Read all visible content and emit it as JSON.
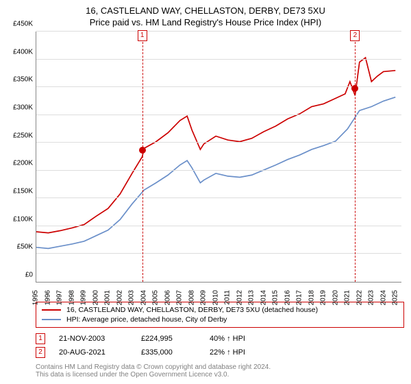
{
  "title": {
    "line1": "16, CASTLELAND WAY, CHELLASTON, DERBY, DE73 5XU",
    "line2": "Price paid vs. HM Land Registry's House Price Index (HPI)"
  },
  "chart": {
    "type": "line",
    "background_color": "#ffffff",
    "grid_color": "#dddddd",
    "axis_color": "#888888",
    "ylim": [
      0,
      450000
    ],
    "ytick_step": 50000,
    "yticks": [
      "£0",
      "£50K",
      "£100K",
      "£150K",
      "£200K",
      "£250K",
      "£300K",
      "£350K",
      "£400K",
      "£450K"
    ],
    "xlim": [
      1995,
      2025.5
    ],
    "xticks": [
      1995,
      1996,
      1997,
      1998,
      1999,
      2000,
      2001,
      2002,
      2003,
      2004,
      2005,
      2006,
      2007,
      2008,
      2009,
      2010,
      2011,
      2012,
      2013,
      2014,
      2015,
      2016,
      2017,
      2018,
      2019,
      2020,
      2021,
      2022,
      2023,
      2024,
      2025
    ],
    "label_fontsize": 10,
    "line_width": 1.7,
    "series": [
      {
        "name": "property",
        "label": "16, CASTLELAND WAY, CHELLASTON, DERBY, DE73 5XU (detached house)",
        "color": "#cc0000",
        "points": [
          [
            1995,
            90000
          ],
          [
            1996,
            88000
          ],
          [
            1997,
            92000
          ],
          [
            1998,
            97000
          ],
          [
            1999,
            103000
          ],
          [
            2000,
            118000
          ],
          [
            2001,
            132000
          ],
          [
            2002,
            158000
          ],
          [
            2003,
            195000
          ],
          [
            2003.85,
            224995
          ],
          [
            2004,
            240000
          ],
          [
            2005,
            252000
          ],
          [
            2006,
            268000
          ],
          [
            2007,
            290000
          ],
          [
            2007.6,
            298000
          ],
          [
            2008,
            273000
          ],
          [
            2008.7,
            238000
          ],
          [
            2009,
            248000
          ],
          [
            2010,
            262000
          ],
          [
            2011,
            255000
          ],
          [
            2012,
            252000
          ],
          [
            2013,
            258000
          ],
          [
            2014,
            270000
          ],
          [
            2015,
            280000
          ],
          [
            2016,
            293000
          ],
          [
            2017,
            302000
          ],
          [
            2018,
            315000
          ],
          [
            2019,
            320000
          ],
          [
            2020,
            330000
          ],
          [
            2020.8,
            338000
          ],
          [
            2021.2,
            360000
          ],
          [
            2021.63,
            335000
          ],
          [
            2022,
            395000
          ],
          [
            2022.5,
            403000
          ],
          [
            2023,
            360000
          ],
          [
            2023.5,
            370000
          ],
          [
            2024,
            378000
          ],
          [
            2025,
            380000
          ]
        ]
      },
      {
        "name": "hpi",
        "label": "HPI: Average price, detached house, City of Derby",
        "color": "#6a8fc9",
        "points": [
          [
            1995,
            62000
          ],
          [
            1996,
            60000
          ],
          [
            1997,
            64000
          ],
          [
            1998,
            68000
          ],
          [
            1999,
            73000
          ],
          [
            2000,
            83000
          ],
          [
            2001,
            93000
          ],
          [
            2002,
            112000
          ],
          [
            2003,
            140000
          ],
          [
            2004,
            165000
          ],
          [
            2005,
            178000
          ],
          [
            2006,
            192000
          ],
          [
            2007,
            210000
          ],
          [
            2007.6,
            218000
          ],
          [
            2008,
            205000
          ],
          [
            2008.7,
            178000
          ],
          [
            2009,
            183000
          ],
          [
            2010,
            195000
          ],
          [
            2011,
            190000
          ],
          [
            2012,
            188000
          ],
          [
            2013,
            192000
          ],
          [
            2014,
            201000
          ],
          [
            2015,
            210000
          ],
          [
            2016,
            220000
          ],
          [
            2017,
            228000
          ],
          [
            2018,
            238000
          ],
          [
            2019,
            245000
          ],
          [
            2020,
            253000
          ],
          [
            2021,
            275000
          ],
          [
            2022,
            308000
          ],
          [
            2023,
            315000
          ],
          [
            2024,
            325000
          ],
          [
            2025,
            332000
          ]
        ]
      }
    ],
    "markers": [
      {
        "n": "1",
        "x": 2003.85,
        "y": 224995
      },
      {
        "n": "2",
        "x": 2021.63,
        "y": 335000
      }
    ]
  },
  "legend": {
    "border_color": "#cc0000",
    "items": [
      {
        "color": "#cc0000",
        "label": "16, CASTLELAND WAY, CHELLASTON, DERBY, DE73 5XU (detached house)"
      },
      {
        "color": "#6a8fc9",
        "label": "HPI: Average price, detached house, City of Derby"
      }
    ]
  },
  "sales": [
    {
      "n": "1",
      "date": "21-NOV-2003",
      "price": "£224,995",
      "pct": "40% ↑ HPI"
    },
    {
      "n": "2",
      "date": "20-AUG-2021",
      "price": "£335,000",
      "pct": "22% ↑ HPI"
    }
  ],
  "footer": {
    "line1": "Contains HM Land Registry data © Crown copyright and database right 2024.",
    "line2": "This data is licensed under the Open Government Licence v3.0."
  }
}
